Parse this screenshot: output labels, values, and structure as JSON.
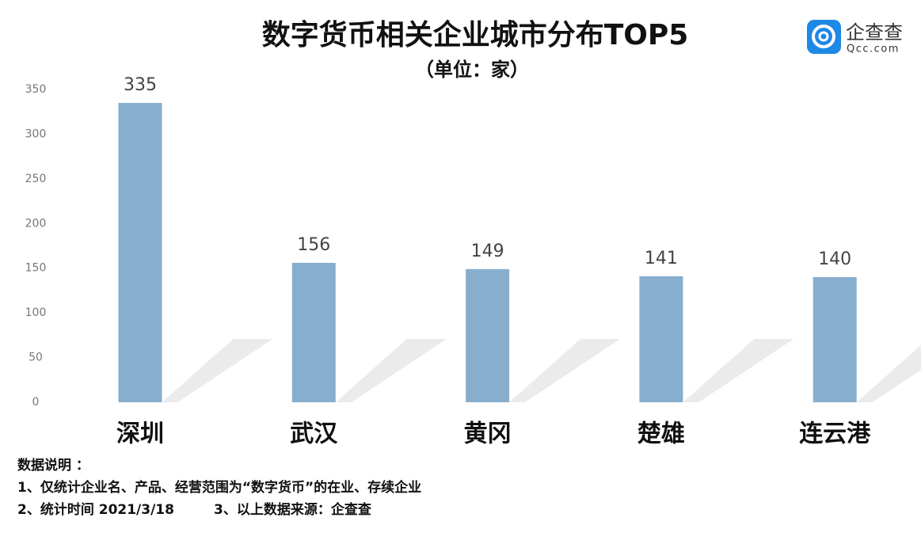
{
  "chart_data": {
    "type": "bar",
    "title": "数字货币相关企业城市分布TOP5",
    "subtitle": "（单位：家）",
    "categories": [
      "深圳",
      "武汉",
      "黄冈",
      "楚雄",
      "连云港"
    ],
    "values": [
      335,
      156,
      149,
      141,
      140
    ],
    "color": "#87aecd",
    "ylim": [
      0,
      350
    ],
    "yticks": [
      0,
      50,
      100,
      150,
      200,
      250,
      300,
      350
    ],
    "grid": false
  },
  "logo": {
    "name": "企查查",
    "url": "Qcc.com"
  },
  "notes": {
    "heading": "数据说明 ：",
    "lines": [
      "1、仅统计企业名、产品、经营范围为“数字货币”的在业、存续企业",
      "2、统计时间 2021/3/18",
      "3、以上数据来源：企查查"
    ]
  }
}
